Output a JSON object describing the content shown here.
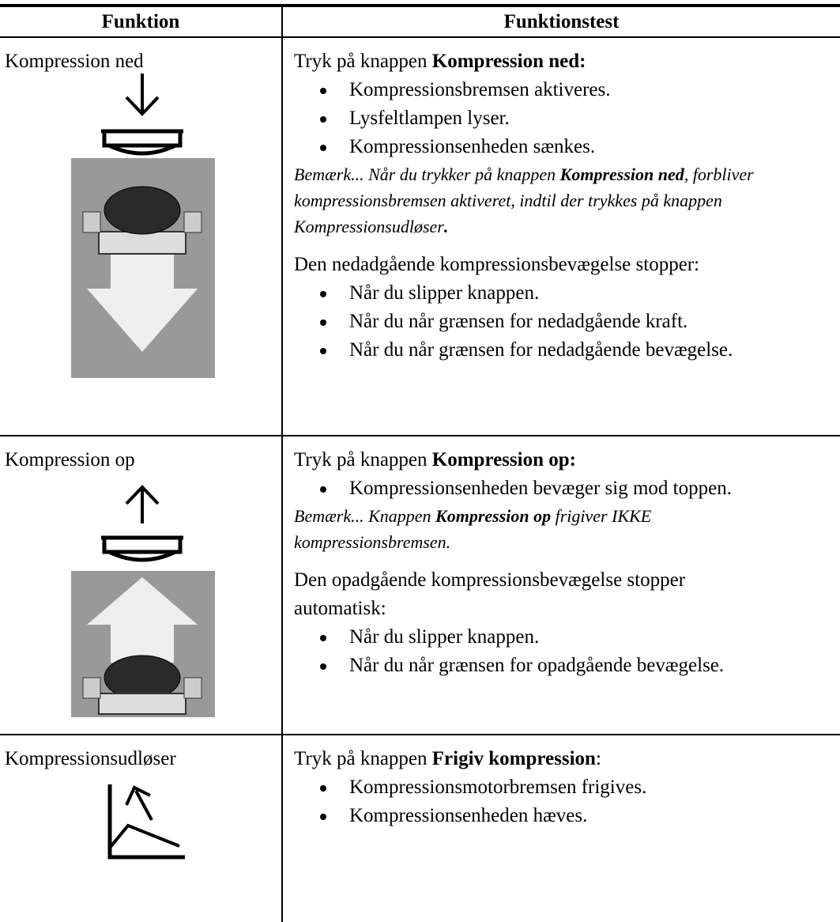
{
  "table": {
    "header": [
      "Funktion",
      "Funktionstest"
    ],
    "rows": [
      {
        "function": "Kompression ned",
        "intro": [
          "Tryk på knappen ",
          "Kompression ned:"
        ],
        "bullets": [
          "Kompressionsbremsen aktiveres.",
          "Lysfeltlampen lyser.",
          "Kompressionsenheden sænkes."
        ],
        "note": [
          "Bemærk... Når du trykker på knappen ",
          "Kompression ned",
          ", forbliver kompressionsbremsen aktiveret, indtil der trykkes på knappen Kompressionsudløser",
          "."
        ],
        "stop": "Den nedadgående kompressionsbevægelse stopper:",
        "stop_bullets": [
          "Når du slipper knappen.",
          "Når du når grænsen for nedadgående kraft.",
          "Når du når grænsen for nedadgående bevægelse."
        ]
      },
      {
        "function": "Kompression op",
        "intro": [
          "Tryk på knappen ",
          "Kompression op:"
        ],
        "bullets": [
          "Kompressionsenheden bevæger sig mod toppen."
        ],
        "note": [
          "Bemærk... Knappen ",
          "Kompression op",
          " frigiver IKKE kompressionsbremsen."
        ],
        "stop": "Den opadgående kompressionsbevægelse stopper automatisk:",
        "stop_bullets": [
          "Når du slipper knappen.",
          "Når du når grænsen for opadgående bevægelse."
        ]
      },
      {
        "function": "Kompressionsudløser",
        "intro": [
          "Tryk på knappen ",
          "Frigiv kompression",
          ":"
        ],
        "bullets": [
          "Kompressionsmotorbremsen frigives.",
          "Kompressionsenheden hæves."
        ]
      }
    ]
  }
}
